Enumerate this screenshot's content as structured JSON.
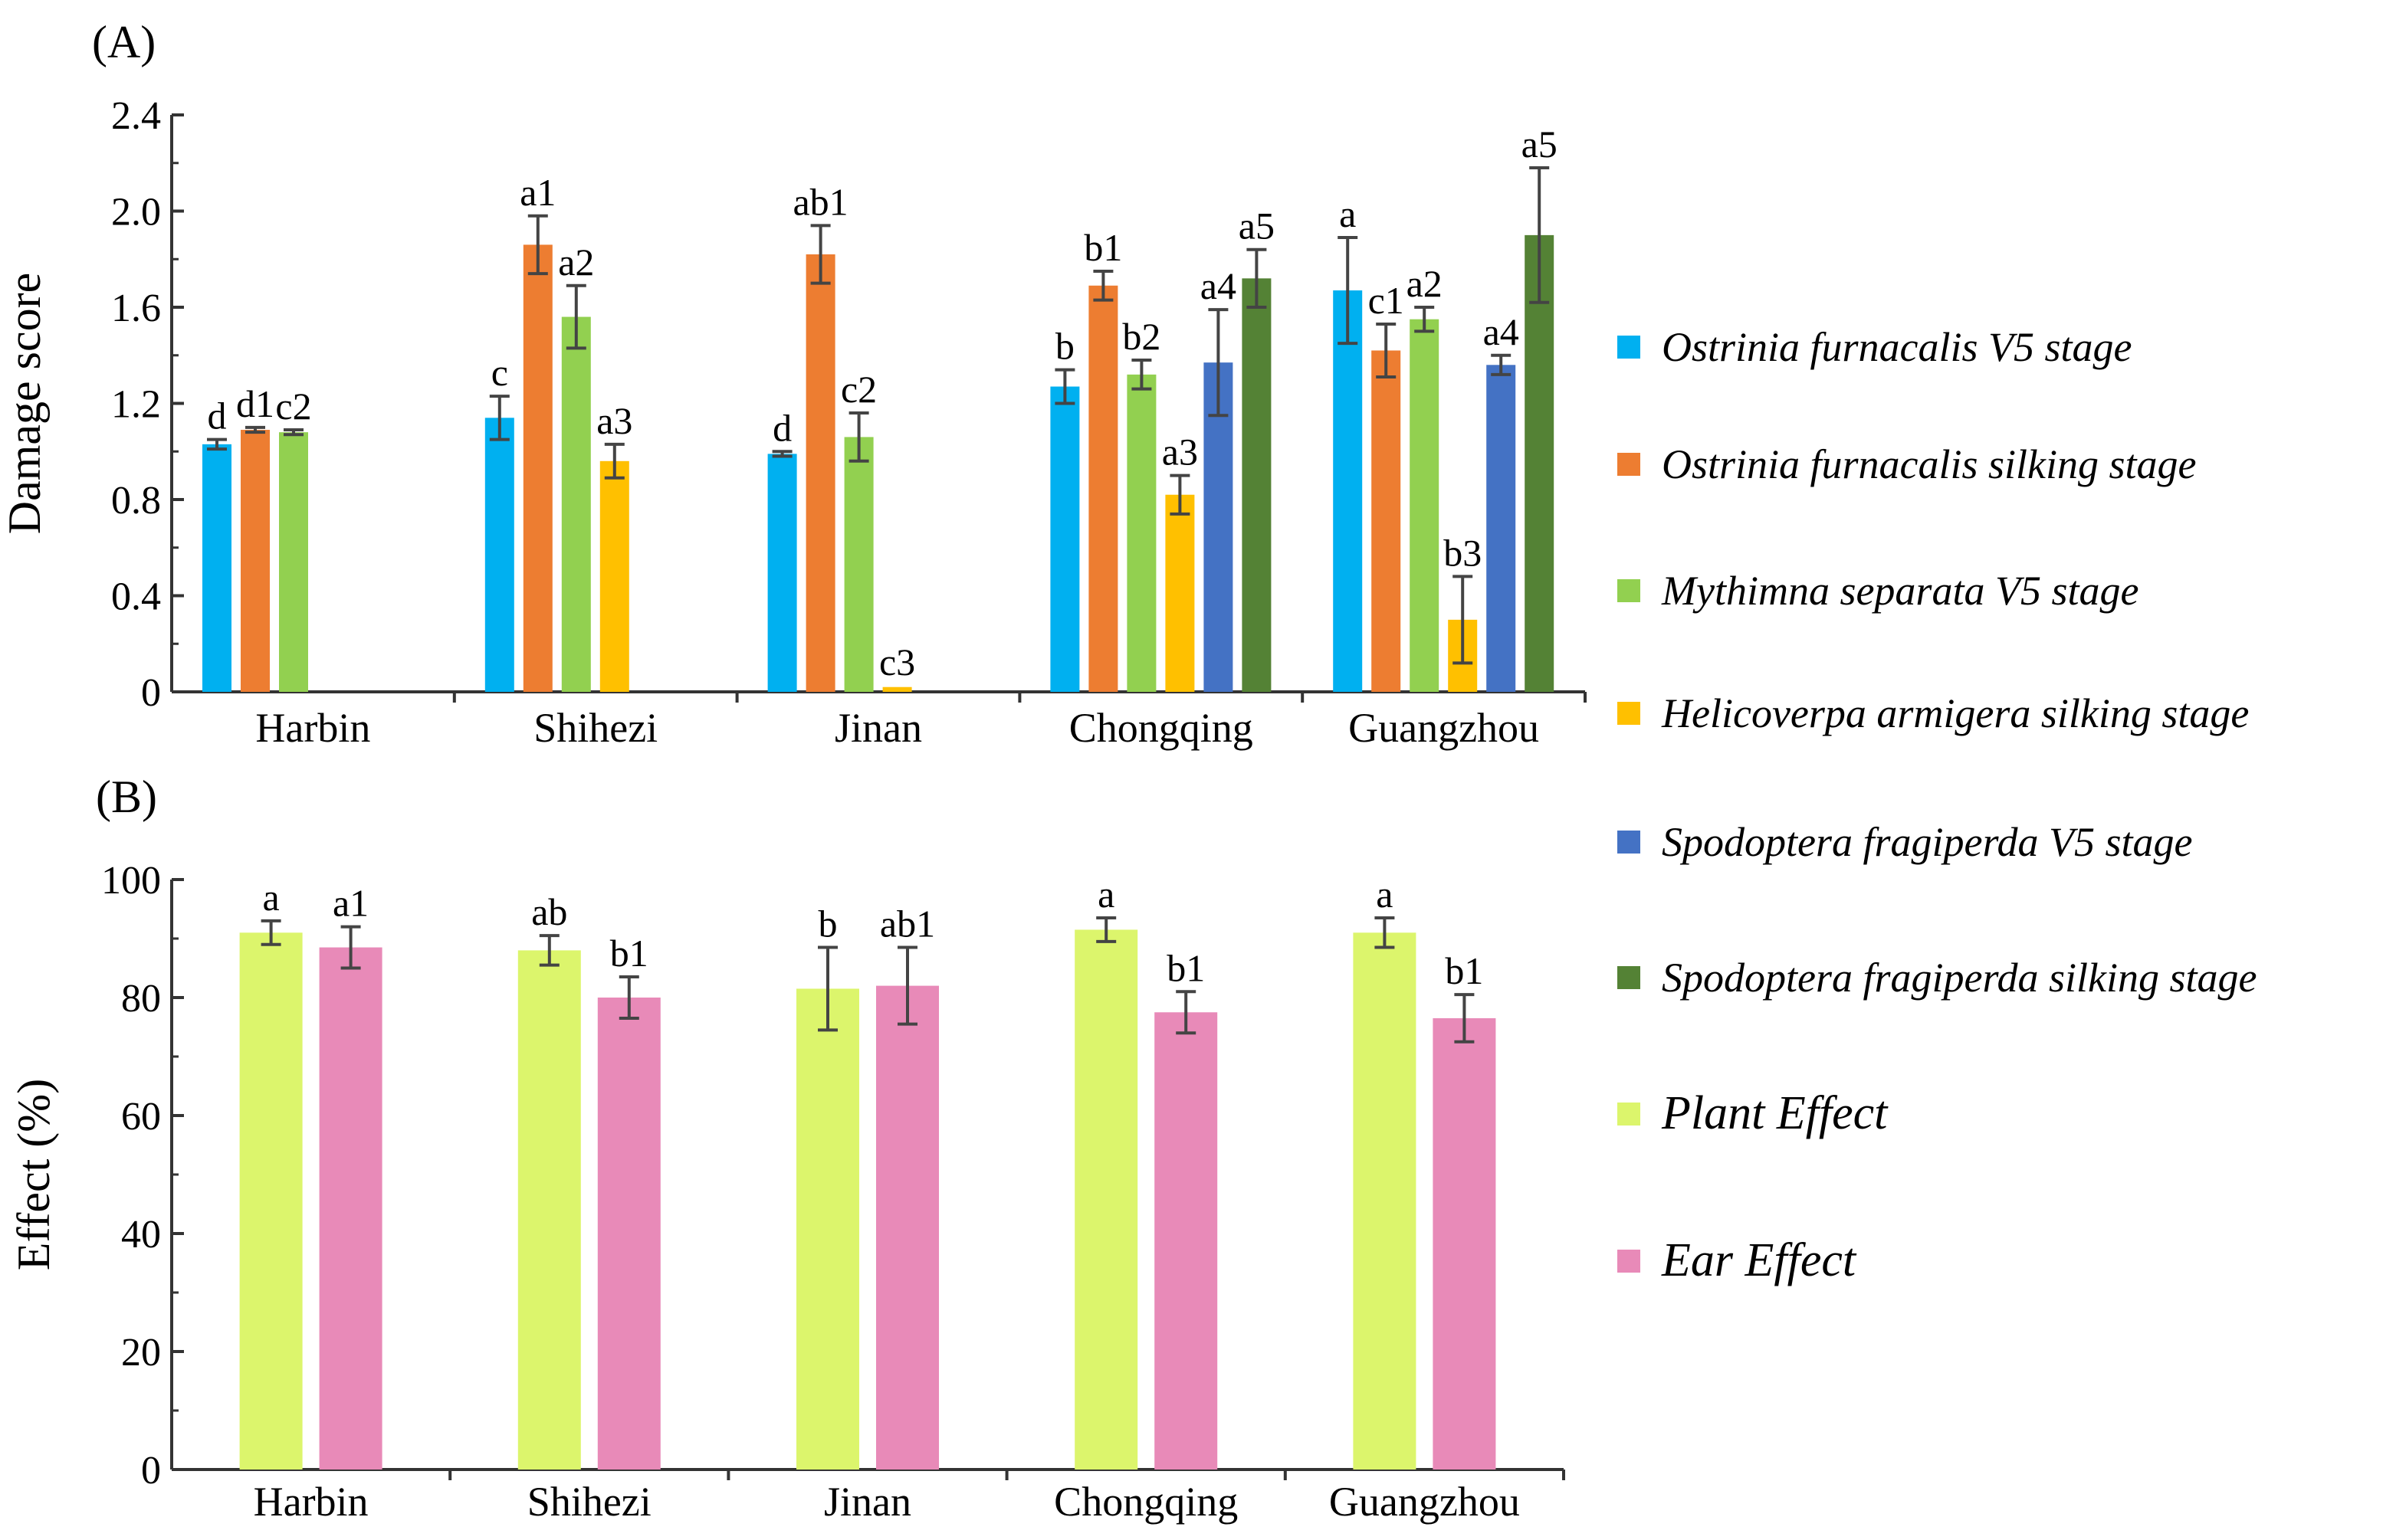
{
  "chart_data": [
    {
      "panel_label": "(A)",
      "type": "bar",
      "ylabel": "Damage score",
      "xlabel": "",
      "ylim": [
        0,
        2.4
      ],
      "yticks": [
        "0",
        "0.4",
        "0.8",
        "1.2",
        "1.6",
        "2.0",
        "2.4"
      ],
      "categories": [
        "Harbin",
        "Shihezi",
        "Jinan",
        "Chongqing",
        "Guangzhou"
      ],
      "series": [
        {
          "name": "Ostrinia furnacalis V5 stage",
          "color": "#00b0f0",
          "values": [
            1.03,
            1.14,
            0.99,
            1.27,
            1.67
          ],
          "errors": [
            0.02,
            0.09,
            0.01,
            0.07,
            0.22
          ],
          "letters": [
            "d",
            "c",
            "d",
            "b",
            "a"
          ]
        },
        {
          "name": "Ostrinia furnacalis silking stage",
          "color": "#ed7d31",
          "values": [
            1.09,
            1.86,
            1.82,
            1.69,
            1.42
          ],
          "errors": [
            0.01,
            0.12,
            0.12,
            0.06,
            0.11
          ],
          "letters": [
            "d1",
            "a1",
            "ab1",
            "b1",
            "c1"
          ]
        },
        {
          "name": "Mythimna separata V5 stage",
          "color": "#92d050",
          "values": [
            1.08,
            1.56,
            1.06,
            1.32,
            1.55
          ],
          "errors": [
            0.01,
            0.13,
            0.1,
            0.06,
            0.05
          ],
          "letters": [
            "c2",
            "a2",
            "c2",
            "b2",
            "a2"
          ]
        },
        {
          "name": "Helicoverpa armigera silking stage",
          "color": "#ffc000",
          "values": [
            null,
            0.96,
            0.02,
            0.82,
            0.3
          ],
          "errors": [
            null,
            0.07,
            0.005,
            0.08,
            0.18
          ],
          "letters": [
            "",
            "a3",
            "c3",
            "a3",
            "b3"
          ]
        },
        {
          "name": "Spodoptera fragiperda V5 stage",
          "color": "#4472c4",
          "values": [
            null,
            null,
            null,
            1.37,
            1.36
          ],
          "errors": [
            null,
            null,
            null,
            0.22,
            0.04
          ],
          "letters": [
            "",
            "",
            "",
            "a4",
            "a4"
          ]
        },
        {
          "name": "Spodoptera fragiperda silking stage",
          "color": "#548235",
          "values": [
            null,
            null,
            null,
            1.72,
            1.9
          ],
          "errors": [
            null,
            null,
            null,
            0.12,
            0.28
          ],
          "letters": [
            "",
            "",
            "",
            "a5",
            "a5"
          ]
        }
      ]
    },
    {
      "panel_label": "(B)",
      "type": "bar",
      "ylabel": "Effect  (%)",
      "xlabel": "",
      "ylim": [
        0,
        100
      ],
      "yticks": [
        "0",
        "20",
        "40",
        "60",
        "80",
        "100"
      ],
      "categories": [
        "Harbin",
        "Shihezi",
        "Jinan",
        "Chongqing",
        "Guangzhou"
      ],
      "series": [
        {
          "name": "Plant Effect",
          "color": "#dcf56c",
          "values": [
            91.0,
            88.0,
            81.5,
            91.5,
            91.0
          ],
          "errors": [
            2.0,
            2.5,
            7.0,
            2.0,
            2.5
          ],
          "letters": [
            "a",
            "ab",
            "b",
            "a",
            "a"
          ]
        },
        {
          "name": "Ear Effect",
          "color": "#e88ab8",
          "values": [
            88.5,
            80.0,
            82.0,
            77.5,
            76.5
          ],
          "errors": [
            3.5,
            3.5,
            6.5,
            3.5,
            4.0
          ],
          "letters": [
            "a1",
            "b1",
            "ab1",
            "b1",
            "b1"
          ]
        }
      ]
    }
  ],
  "legend": [
    {
      "label": "Ostrinia furnacalis V5 stage",
      "color": "#00b0f0"
    },
    {
      "label": "Ostrinia furnacalis silking stage",
      "color": "#ed7d31"
    },
    {
      "label": "Mythimna separata V5 stage",
      "color": "#92d050"
    },
    {
      "label": "Helicoverpa armigera silking stage",
      "color": "#ffc000"
    },
    {
      "label": "Spodoptera fragiperda V5 stage",
      "color": "#4472c4"
    },
    {
      "label": "Spodoptera fragiperda silking stage",
      "color": "#548235"
    },
    {
      "label": "Plant Effect",
      "color": "#dcf56c"
    },
    {
      "label": "Ear Effect",
      "color": "#e88ab8"
    }
  ]
}
